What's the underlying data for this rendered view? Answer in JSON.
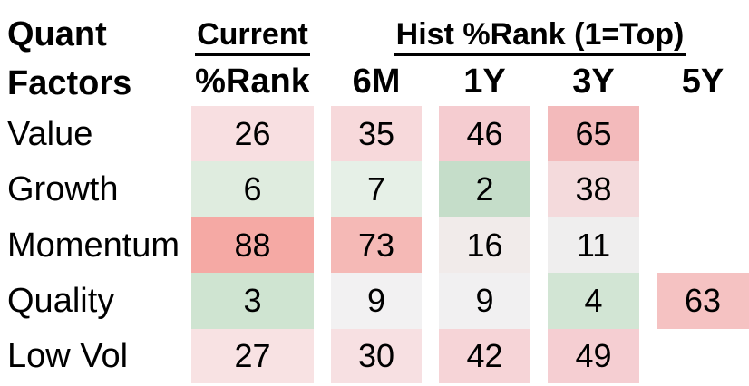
{
  "meta": {
    "background_color": "#ffffff",
    "text_color": "#000000",
    "underline_color": "#000000"
  },
  "header": {
    "row_header_line1": "Quant",
    "row_header_line2": "Factors",
    "group_current": "Current",
    "group_hist": "Hist %Rank (1=Top)",
    "sub_current": "%Rank",
    "sub_hist": [
      "6M",
      "1Y",
      "3Y",
      "5Y"
    ]
  },
  "rows": [
    {
      "label": "Value",
      "cells": [
        {
          "v": "26",
          "bg": "#f8dfe1"
        },
        {
          "v": "35",
          "bg": "#f7d9db"
        },
        {
          "v": "46",
          "bg": "#f5ccd0"
        },
        {
          "v": "65",
          "bg": "#f3babb"
        },
        {
          "v": "",
          "bg": ""
        }
      ]
    },
    {
      "label": "Growth",
      "cells": [
        {
          "v": "6",
          "bg": "#dfecdf"
        },
        {
          "v": "7",
          "bg": "#e6f0e7"
        },
        {
          "v": "2",
          "bg": "#c5ddc9"
        },
        {
          "v": "38",
          "bg": "#f4dadc"
        },
        {
          "v": "",
          "bg": ""
        }
      ]
    },
    {
      "label": "Momentum",
      "cells": [
        {
          "v": "88",
          "bg": "#f5a9a4"
        },
        {
          "v": "73",
          "bg": "#f5b9b6"
        },
        {
          "v": "16",
          "bg": "#f1ebea"
        },
        {
          "v": "11",
          "bg": "#efeeee"
        },
        {
          "v": "",
          "bg": ""
        }
      ]
    },
    {
      "label": "Quality",
      "cells": [
        {
          "v": "3",
          "bg": "#cfe4d1"
        },
        {
          "v": "9",
          "bg": "#f2f1f2"
        },
        {
          "v": "9",
          "bg": "#f1f0f1"
        },
        {
          "v": "4",
          "bg": "#d2e5d4"
        },
        {
          "v": "63",
          "bg": "#f5c2c2"
        }
      ]
    },
    {
      "label": "Low Vol",
      "cells": [
        {
          "v": "27",
          "bg": "#f8e2e3"
        },
        {
          "v": "30",
          "bg": "#f7e0e2"
        },
        {
          "v": "42",
          "bg": "#f6d4d7"
        },
        {
          "v": "49",
          "bg": "#f5ced2"
        },
        {
          "v": "",
          "bg": ""
        }
      ]
    }
  ],
  "chart_data": {
    "type": "heatmap",
    "title": "Quant Factors",
    "column_groups": [
      {
        "label": "Current",
        "columns": [
          "%Rank"
        ]
      },
      {
        "label": "Hist %Rank (1=Top)",
        "columns": [
          "6M",
          "1Y",
          "3Y",
          "5Y"
        ]
      }
    ],
    "columns": [
      "Current %Rank",
      "6M",
      "1Y",
      "3Y",
      "5Y"
    ],
    "rows": [
      "Value",
      "Growth",
      "Momentum",
      "Quality",
      "Low Vol"
    ],
    "values": [
      [
        26,
        35,
        46,
        65,
        null
      ],
      [
        6,
        7,
        2,
        38,
        null
      ],
      [
        88,
        73,
        16,
        11,
        null
      ],
      [
        3,
        9,
        9,
        4,
        63
      ],
      [
        27,
        30,
        42,
        49,
        null
      ]
    ],
    "scale_note": "1=Top; low ranks shaded green, high ranks shaded red, mid near-white",
    "legend_position": "none",
    "grid": false
  }
}
